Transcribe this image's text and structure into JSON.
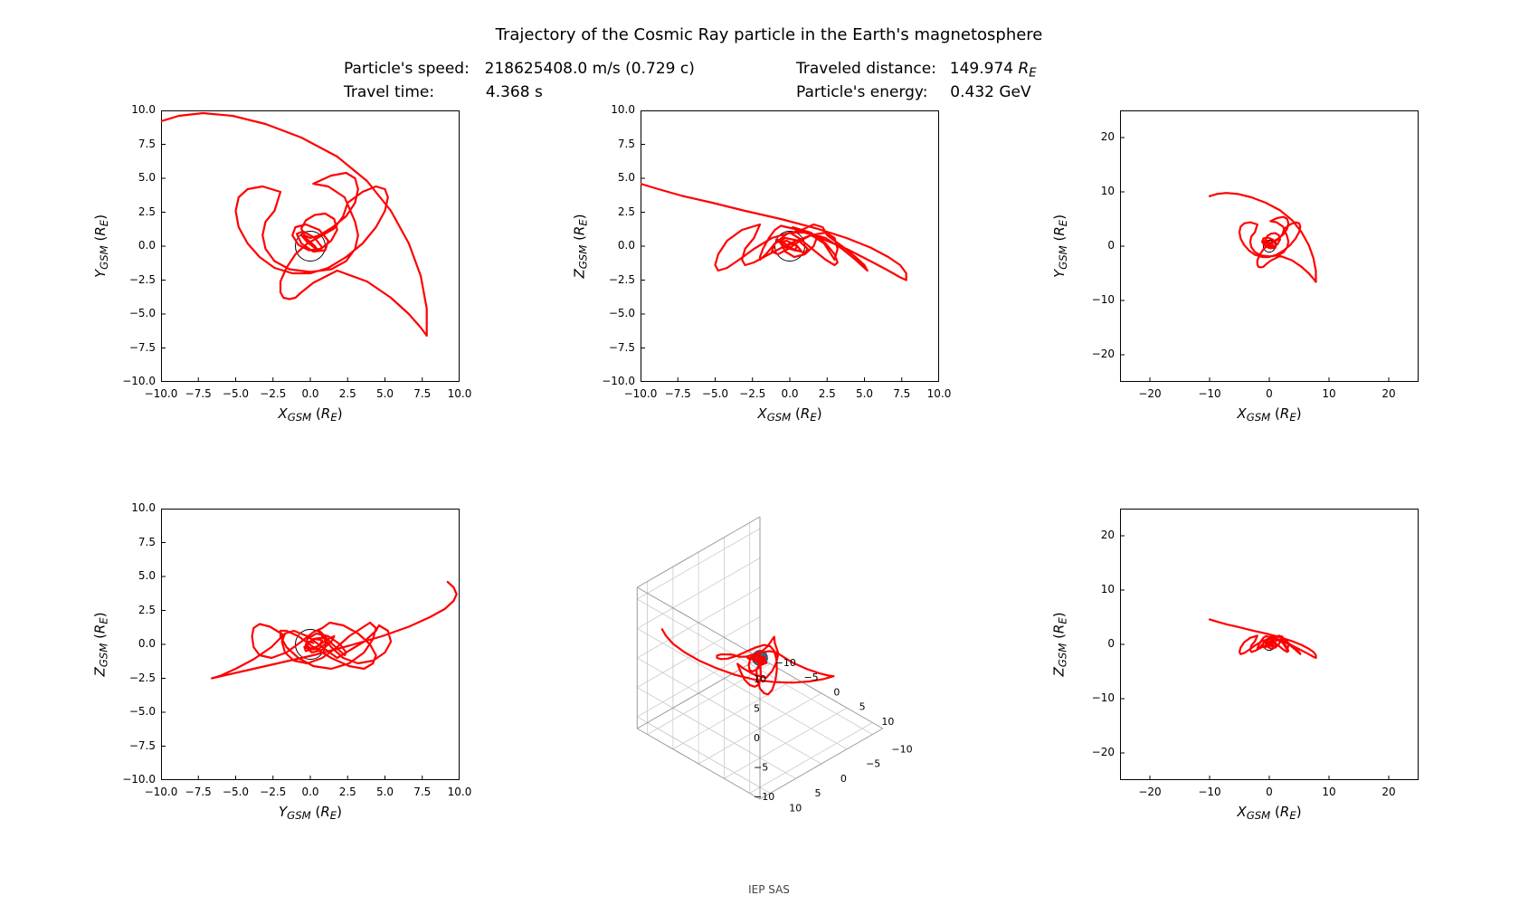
{
  "title": "Trajectory of the Cosmic Ray particle in the Earth's magnetosphere",
  "info": {
    "speed_label": "Particle's speed:",
    "speed_value": "218625408.0 m/s (0.729 c)",
    "time_label": "Travel time:",
    "time_value": "4.368 s",
    "distance_label": "Traveled distance:",
    "distance_value_prefix": "149.974 ",
    "distance_value_unit": "R_E",
    "energy_label": "Particle's energy:",
    "energy_value": "0.432 GeV"
  },
  "footer": "IEP SAS",
  "colors": {
    "line": "#ff0000",
    "earth_stroke": "#000000",
    "earth_fill": "#ffffff",
    "earth_3d": "#2e6b8e",
    "axis": "#000000",
    "grid3d": "#cccccc",
    "background": "#ffffff",
    "tick": "#000000"
  },
  "line_width": 2.2,
  "earth_radius_data": 1.0,
  "panels": {
    "p11": {
      "xlabel_var": "X",
      "ylabel_var": "Y",
      "xlim": [
        -10,
        10
      ],
      "ylim": [
        -10,
        10
      ],
      "xticks": [
        -10.0,
        -7.5,
        -5.0,
        -2.5,
        0.0,
        2.5,
        5.0,
        7.5,
        10.0
      ],
      "yticks": [
        -10.0,
        -7.5,
        -5.0,
        -2.5,
        0.0,
        2.5,
        5.0,
        7.5,
        10.0
      ],
      "xtick_labels": [
        "−10.0",
        "−7.5",
        "−5.0",
        "−2.5",
        "0.0",
        "2.5",
        "5.0",
        "7.5",
        "10.0"
      ],
      "ytick_labels": [
        "−10.0",
        "−7.5",
        "−5.0",
        "−2.5",
        "0.0",
        "2.5",
        "5.0",
        "7.5",
        "10.0"
      ]
    },
    "p12": {
      "xlabel_var": "X",
      "ylabel_var": "Z",
      "xlim": [
        -10,
        10
      ],
      "ylim": [
        -10,
        10
      ],
      "xticks": [
        -10.0,
        -7.5,
        -5.0,
        -2.5,
        0.0,
        2.5,
        5.0,
        7.5,
        10.0
      ],
      "yticks": [
        -10.0,
        -7.5,
        -5.0,
        -2.5,
        0.0,
        2.5,
        5.0,
        7.5,
        10.0
      ],
      "xtick_labels": [
        "−10.0",
        "−7.5",
        "−5.0",
        "−2.5",
        "0.0",
        "2.5",
        "5.0",
        "7.5",
        "10.0"
      ],
      "ytick_labels": [
        "−10.0",
        "−7.5",
        "−5.0",
        "−2.5",
        "0.0",
        "2.5",
        "5.0",
        "7.5",
        "10.0"
      ]
    },
    "p13": {
      "xlabel_var": "X",
      "ylabel_var": "Y",
      "xlim": [
        -25,
        25
      ],
      "ylim": [
        -25,
        25
      ],
      "xticks": [
        -20,
        -10,
        0,
        10,
        20
      ],
      "yticks": [
        -20,
        -10,
        0,
        10,
        20
      ],
      "xtick_labels": [
        "−20",
        "−10",
        "0",
        "10",
        "20"
      ],
      "ytick_labels": [
        "−20",
        "−10",
        "0",
        "10",
        "20"
      ]
    },
    "p21": {
      "xlabel_var": "Y",
      "ylabel_var": "Z",
      "xlim": [
        -10,
        10
      ],
      "ylim": [
        -10,
        10
      ],
      "xticks": [
        -10.0,
        -7.5,
        -5.0,
        -2.5,
        0.0,
        2.5,
        5.0,
        7.5,
        10.0
      ],
      "yticks": [
        -10.0,
        -7.5,
        -5.0,
        -2.5,
        0.0,
        2.5,
        5.0,
        7.5,
        10.0
      ],
      "xtick_labels": [
        "−10.0",
        "−7.5",
        "−5.0",
        "−2.5",
        "0.0",
        "2.5",
        "5.0",
        "7.5",
        "10.0"
      ],
      "ytick_labels": [
        "−10.0",
        "−7.5",
        "−5.0",
        "−2.5",
        "0.0",
        "2.5",
        "5.0",
        "7.5",
        "10.0"
      ]
    },
    "p23": {
      "xlabel_var": "X",
      "ylabel_var": "Z",
      "xlim": [
        -25,
        25
      ],
      "ylim": [
        -25,
        25
      ],
      "xticks": [
        -20,
        -10,
        0,
        10,
        20
      ],
      "yticks": [
        -20,
        -10,
        0,
        10,
        20
      ],
      "xtick_labels": [
        "−20",
        "−10",
        "0",
        "10",
        "20"
      ],
      "ytick_labels": [
        "−20",
        "−10",
        "0",
        "10",
        "20"
      ]
    }
  },
  "panel3d": {
    "xticks": [
      -10,
      -5,
      0,
      5,
      10
    ],
    "yticks": [
      -10,
      -5,
      0,
      5,
      10
    ],
    "zticks": [
      -10,
      -5,
      0,
      5,
      10
    ],
    "xtick_labels": [
      "−10",
      "−5",
      "0",
      "5",
      "10"
    ],
    "ytick_labels": [
      "−10",
      "−5",
      "0",
      "5",
      "10"
    ],
    "ztick_labels": [
      "−10",
      "−5",
      "0",
      "5",
      "10"
    ]
  },
  "trajectory": {
    "x": [
      -10.0,
      -8.8,
      -7.2,
      -5.2,
      -3.0,
      -0.6,
      1.8,
      3.8,
      5.4,
      6.6,
      7.4,
      7.8,
      7.8,
      7.4,
      6.6,
      5.4,
      3.8,
      1.8,
      0.2,
      -0.6,
      -1.0,
      -1.4,
      -1.8,
      -2.0,
      -2.0,
      -1.6,
      -1.0,
      -0.2,
      0.8,
      1.6,
      2.2,
      2.5,
      3.5,
      4.4,
      5.0,
      5.2,
      5.0,
      4.4,
      3.5,
      2.4,
      1.2,
      0.0,
      -1.2,
      -2.4,
      -3.4,
      -4.2,
      -4.8,
      -5.0,
      -4.8,
      -4.2,
      -3.2,
      -2.0,
      -2.4,
      -3.0,
      -3.2,
      -3.0,
      -2.4,
      -1.4,
      0.0,
      1.4,
      2.4,
      3.0,
      3.2,
      3.0,
      2.3,
      1.2,
      0.2,
      1.4,
      2.4,
      3.0,
      3.2,
      3.0,
      2.4,
      1.5,
      0.6,
      0.0,
      -0.4,
      -0.6,
      -0.3,
      0.3,
      1.0,
      1.6,
      1.8,
      1.4,
      0.7,
      -0.1,
      -0.8,
      -1.2,
      -1.0,
      -0.3,
      0.6,
      1.2,
      1.0,
      0.2,
      -0.6,
      -0.9,
      -0.5,
      0.3,
      0.8,
      0.5,
      -0.2,
      -0.6,
      -0.3,
      0.3,
      0.5,
      0.3,
      -0.1
    ],
    "y": [
      9.2,
      9.6,
      9.8,
      9.6,
      9.0,
      8.0,
      6.6,
      4.8,
      2.6,
      0.2,
      -2.2,
      -4.6,
      -6.6,
      -6.0,
      -5.0,
      -3.8,
      -2.6,
      -1.8,
      -2.7,
      -3.4,
      -3.8,
      -3.9,
      -3.8,
      -3.4,
      -2.6,
      -1.6,
      -0.6,
      0.2,
      0.8,
      1.3,
      2.2,
      3.2,
      4.0,
      4.4,
      4.2,
      3.6,
      2.6,
      1.4,
      0.2,
      -0.8,
      -1.6,
      -2.0,
      -2.0,
      -1.6,
      -0.8,
      0.2,
      1.4,
      2.6,
      3.6,
      4.2,
      4.4,
      4.0,
      2.6,
      1.8,
      0.8,
      -0.2,
      -1.1,
      -1.7,
      -1.9,
      -1.7,
      -1.1,
      -0.2,
      0.8,
      1.8,
      3.6,
      4.4,
      4.6,
      5.2,
      5.4,
      5.0,
      4.2,
      3.2,
      2.2,
      1.4,
      0.8,
      0.6,
      0.8,
      1.3,
      1.9,
      2.3,
      2.4,
      2.0,
      1.2,
      0.4,
      -0.2,
      -0.3,
      0.1,
      0.8,
      1.4,
      1.6,
      1.2,
      0.4,
      -0.3,
      -0.4,
      0.2,
      0.9,
      1.1,
      0.6,
      -0.1,
      -0.3,
      0.3,
      0.8,
      0.6,
      0.0,
      -0.3,
      -0.1,
      0.2
    ],
    "z": [
      4.6,
      4.2,
      3.7,
      3.2,
      2.6,
      2.0,
      1.3,
      0.6,
      -0.1,
      -0.8,
      -1.4,
      -2.0,
      -2.5,
      -2.3,
      -1.8,
      -1.1,
      -0.2,
      0.7,
      1.3,
      1.5,
      1.2,
      0.6,
      -0.2,
      -0.8,
      -1.0,
      -0.6,
      0.2,
      0.9,
      1.2,
      1.6,
      1.4,
      0.8,
      0.0,
      -0.8,
      -1.4,
      -1.8,
      -1.6,
      -1.0,
      -0.2,
      0.6,
      1.0,
      1.0,
      0.6,
      -0.2,
      -1.0,
      -1.6,
      -1.8,
      -1.4,
      -0.6,
      0.4,
      1.2,
      1.6,
      0.6,
      -0.2,
      -1.0,
      -1.4,
      -1.2,
      -0.6,
      0.2,
      0.8,
      1.0,
      0.6,
      -0.2,
      -1.0,
      0.2,
      1.0,
      1.4,
      1.0,
      0.2,
      -0.6,
      -1.2,
      -1.4,
      -1.0,
      -0.2,
      0.6,
      1.0,
      0.8,
      0.2,
      -0.4,
      -0.8,
      -0.6,
      0.0,
      0.6,
      0.8,
      0.4,
      -0.2,
      -0.6,
      -0.4,
      0.2,
      0.6,
      0.4,
      -0.2,
      -0.5,
      -0.2,
      0.4,
      0.5,
      0.1,
      -0.3,
      -0.4,
      0.0,
      0.4,
      0.3,
      -0.1,
      -0.3,
      0.0,
      0.2,
      0.1
    ]
  }
}
